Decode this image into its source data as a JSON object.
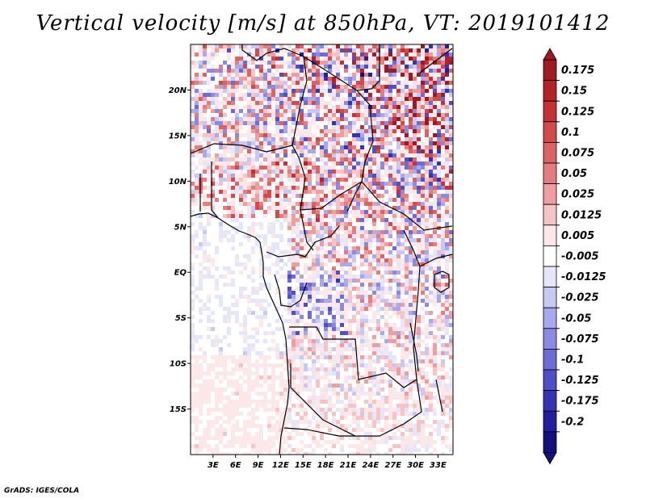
{
  "title": "Vertical velocity [m/s] at 850hPa, VT: 2019101412",
  "credit": "GrADS: IGES/COLA",
  "chart_data": {
    "type": "heatmap",
    "variable": "vertical velocity",
    "units": "m/s",
    "level": "850hPa",
    "valid_time": "2019101412",
    "xlim": [
      0,
      35
    ],
    "ylim": [
      -20,
      25
    ],
    "x_ticks": [
      {
        "value": 3,
        "label": "3E"
      },
      {
        "value": 6,
        "label": "6E"
      },
      {
        "value": 9,
        "label": "9E"
      },
      {
        "value": 12,
        "label": "12E"
      },
      {
        "value": 15,
        "label": "15E"
      },
      {
        "value": 18,
        "label": "18E"
      },
      {
        "value": 21,
        "label": "21E"
      },
      {
        "value": 24,
        "label": "24E"
      },
      {
        "value": 27,
        "label": "27E"
      },
      {
        "value": 30,
        "label": "30E"
      },
      {
        "value": 33,
        "label": "33E"
      }
    ],
    "y_ticks": [
      {
        "value": 20,
        "label": "20N"
      },
      {
        "value": 15,
        "label": "15N"
      },
      {
        "value": 10,
        "label": "10N"
      },
      {
        "value": 5,
        "label": "5N"
      },
      {
        "value": 0,
        "label": "EQ"
      },
      {
        "value": -5,
        "label": "5S"
      },
      {
        "value": -10,
        "label": "10S"
      },
      {
        "value": -15,
        "label": "15S"
      }
    ],
    "colorbar": {
      "labels": [
        "0.175",
        "0.15",
        "0.125",
        "0.1",
        "0.075",
        "0.05",
        "0.025",
        "0.0125",
        "0.005",
        "-0.005",
        "-0.0125",
        "-0.025",
        "-0.05",
        "-0.075",
        "-0.1",
        "-0.125",
        "-0.175",
        "-0.2"
      ],
      "colors": [
        "#a01820",
        "#b42228",
        "#c53236",
        "#d24a4b",
        "#dc6363",
        "#e47e7e",
        "#ee9e9e",
        "#f6c4c4",
        "#fce8e8",
        "#ffffff",
        "#e6e6fa",
        "#c8c8f4",
        "#a8a8ec",
        "#8a8ae2",
        "#6c6cd6",
        "#4e4ec6",
        "#3434b2",
        "#221f9c",
        "#12107a"
      ]
    },
    "field_description_regions": [
      {
        "name": "north-east",
        "dominant": "mixed strong"
      },
      {
        "name": "south-west ocean",
        "dominant": "weak"
      }
    ]
  }
}
